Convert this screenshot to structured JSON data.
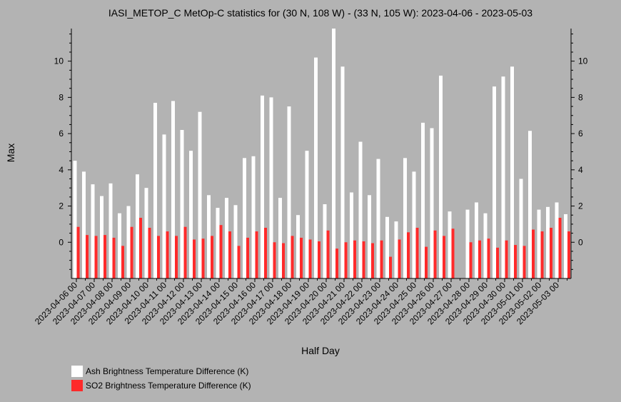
{
  "chart_data": {
    "type": "bar",
    "title": "IASI_METOP_C MetOp-C statistics for (30 N, 108 W) - (33 N, 105 W): 2023-04-06 - 2023-05-03",
    "xlabel": "Half Day",
    "ylabel": "Max",
    "ylim": [
      -2,
      11.8
    ],
    "yticks": [
      0,
      2,
      4,
      6,
      8,
      10
    ],
    "grid": false,
    "legend_position": "bottom-left",
    "tick_labels": [
      "2023-04-06 00",
      "2023-04-07 00",
      "2023-04-08 00",
      "2023-04-09 00",
      "2023-04-10 00",
      "2023-04-11 00",
      "2023-04-12 00",
      "2023-04-13 00",
      "2023-04-14 00",
      "2023-04-15 00",
      "2023-04-16 00",
      "2023-04-17 00",
      "2023-04-18 00",
      "2023-04-19 00",
      "2023-04-20 00",
      "2023-04-21 00",
      "2023-04-22 00",
      "2023-04-23 00",
      "2023-04-24 00",
      "2023-04-25 00",
      "2023-04-26 00",
      "2023-04-27 00",
      "2023-04-28 00",
      "2023-04-29 00",
      "2023-04-30 00",
      "2023-05-01 00",
      "2023-05-02 00",
      "2023-05-03 00"
    ],
    "series": [
      {
        "name": "Ash Brightness Temperature Difference (K)",
        "color": "#ffffff",
        "values": [
          4.5,
          3.9,
          3.2,
          2.55,
          3.25,
          1.6,
          2.0,
          3.75,
          3.0,
          7.7,
          5.95,
          7.8,
          6.2,
          5.05,
          7.2,
          2.6,
          1.9,
          2.45,
          2.05,
          4.65,
          4.75,
          8.1,
          8.0,
          2.45,
          7.5,
          1.5,
          5.05,
          10.2,
          2.1,
          11.8,
          9.7,
          2.75,
          5.55,
          2.6,
          4.6,
          1.4,
          1.15,
          4.65,
          3.9,
          6.6,
          6.3,
          9.2,
          1.7,
          null,
          1.8,
          2.2,
          1.6,
          8.6,
          9.15,
          9.7,
          3.5,
          6.15,
          1.8,
          1.95,
          2.2,
          1.55
        ]
      },
      {
        "name": "SO2 Brightness Temperature Difference (K)",
        "color": "#ff2a2a",
        "values": [
          0.85,
          0.4,
          0.35,
          0.4,
          0.25,
          -0.2,
          0.85,
          1.35,
          0.8,
          0.35,
          0.6,
          0.35,
          0.85,
          0.15,
          0.2,
          0.35,
          0.95,
          0.6,
          -0.2,
          0.25,
          0.6,
          0.8,
          0.0,
          -0.05,
          0.35,
          0.25,
          0.15,
          0.05,
          0.65,
          -0.35,
          0.0,
          0.1,
          0.05,
          -0.05,
          0.1,
          -0.8,
          0.15,
          0.55,
          0.8,
          -0.25,
          0.65,
          0.35,
          0.75,
          null,
          0.0,
          0.1,
          0.2,
          -0.3,
          0.1,
          -0.15,
          -0.2,
          0.7,
          0.6,
          0.8,
          1.35,
          0.6
        ]
      }
    ]
  }
}
